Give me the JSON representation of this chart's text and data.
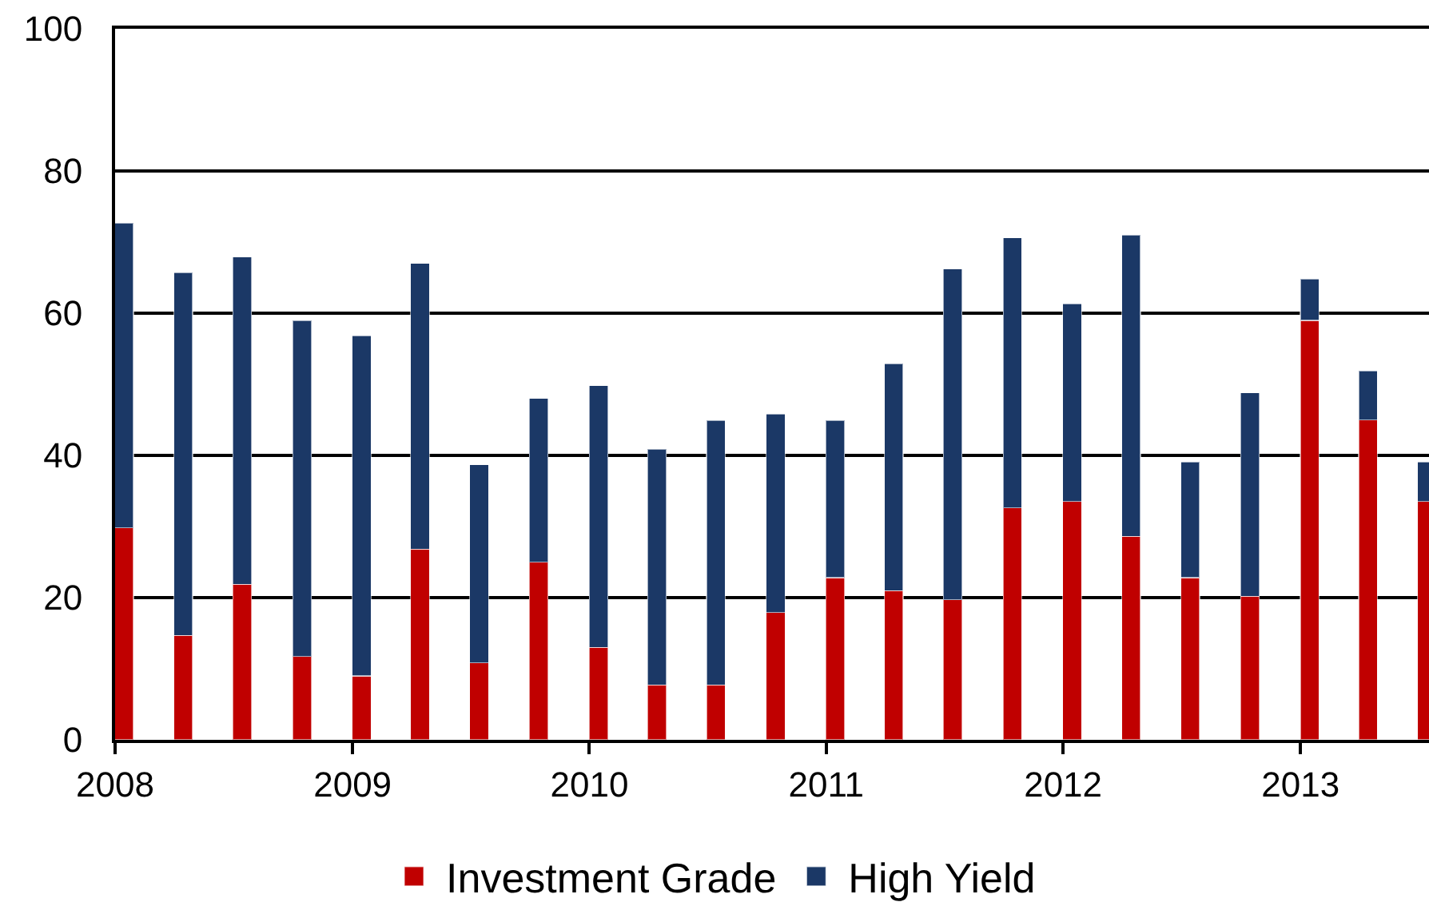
{
  "chart_data": {
    "type": "bar",
    "stacked": true,
    "x": [
      "2008-01-15",
      "2008-04-15",
      "2008-07-15",
      "2008-10-15",
      "2009-01-15",
      "2009-04-15",
      "2009-07-15",
      "2009-10-15",
      "2010-01-15",
      "2010-04-15",
      "2010-07-15",
      "2010-10-15",
      "2011-01-15",
      "2011-04-15",
      "2011-07-15",
      "2011-10-15",
      "2012-01-15",
      "2012-04-15",
      "2012-07-15",
      "2012-10-15",
      "2013-01-15",
      "2013-04-15",
      "2013-07-15"
    ],
    "series": [
      {
        "name": "Investment Grade",
        "color": "#c00000",
        "values": [
          29.8,
          14.7,
          21.9,
          11.7,
          9.0,
          26.8,
          10.8,
          25.0,
          13.0,
          7.7,
          7.7,
          17.9,
          22.8,
          21.0,
          19.7,
          32.6,
          33.5,
          28.6,
          22.8,
          20.2,
          59.0,
          45.0,
          33.5
        ]
      },
      {
        "name": "High Yield",
        "color": "#1b3866",
        "values": [
          42.9,
          51.0,
          46.0,
          47.3,
          47.8,
          40.2,
          27.9,
          23.0,
          36.8,
          33.2,
          37.2,
          27.9,
          22.1,
          31.9,
          46.5,
          38.0,
          27.8,
          42.4,
          16.3,
          28.6,
          5.8,
          6.9,
          5.6
        ]
      }
    ],
    "xlim": [
      "2008",
      "2013-07-18"
    ],
    "xticks": [
      "2008",
      "2009",
      "2010",
      "2011",
      "2012",
      "2013"
    ],
    "ylim": [
      0,
      100
    ],
    "yticks": [
      0,
      20,
      40,
      60,
      80,
      100
    ],
    "grid": "y",
    "legend": "bottom"
  }
}
